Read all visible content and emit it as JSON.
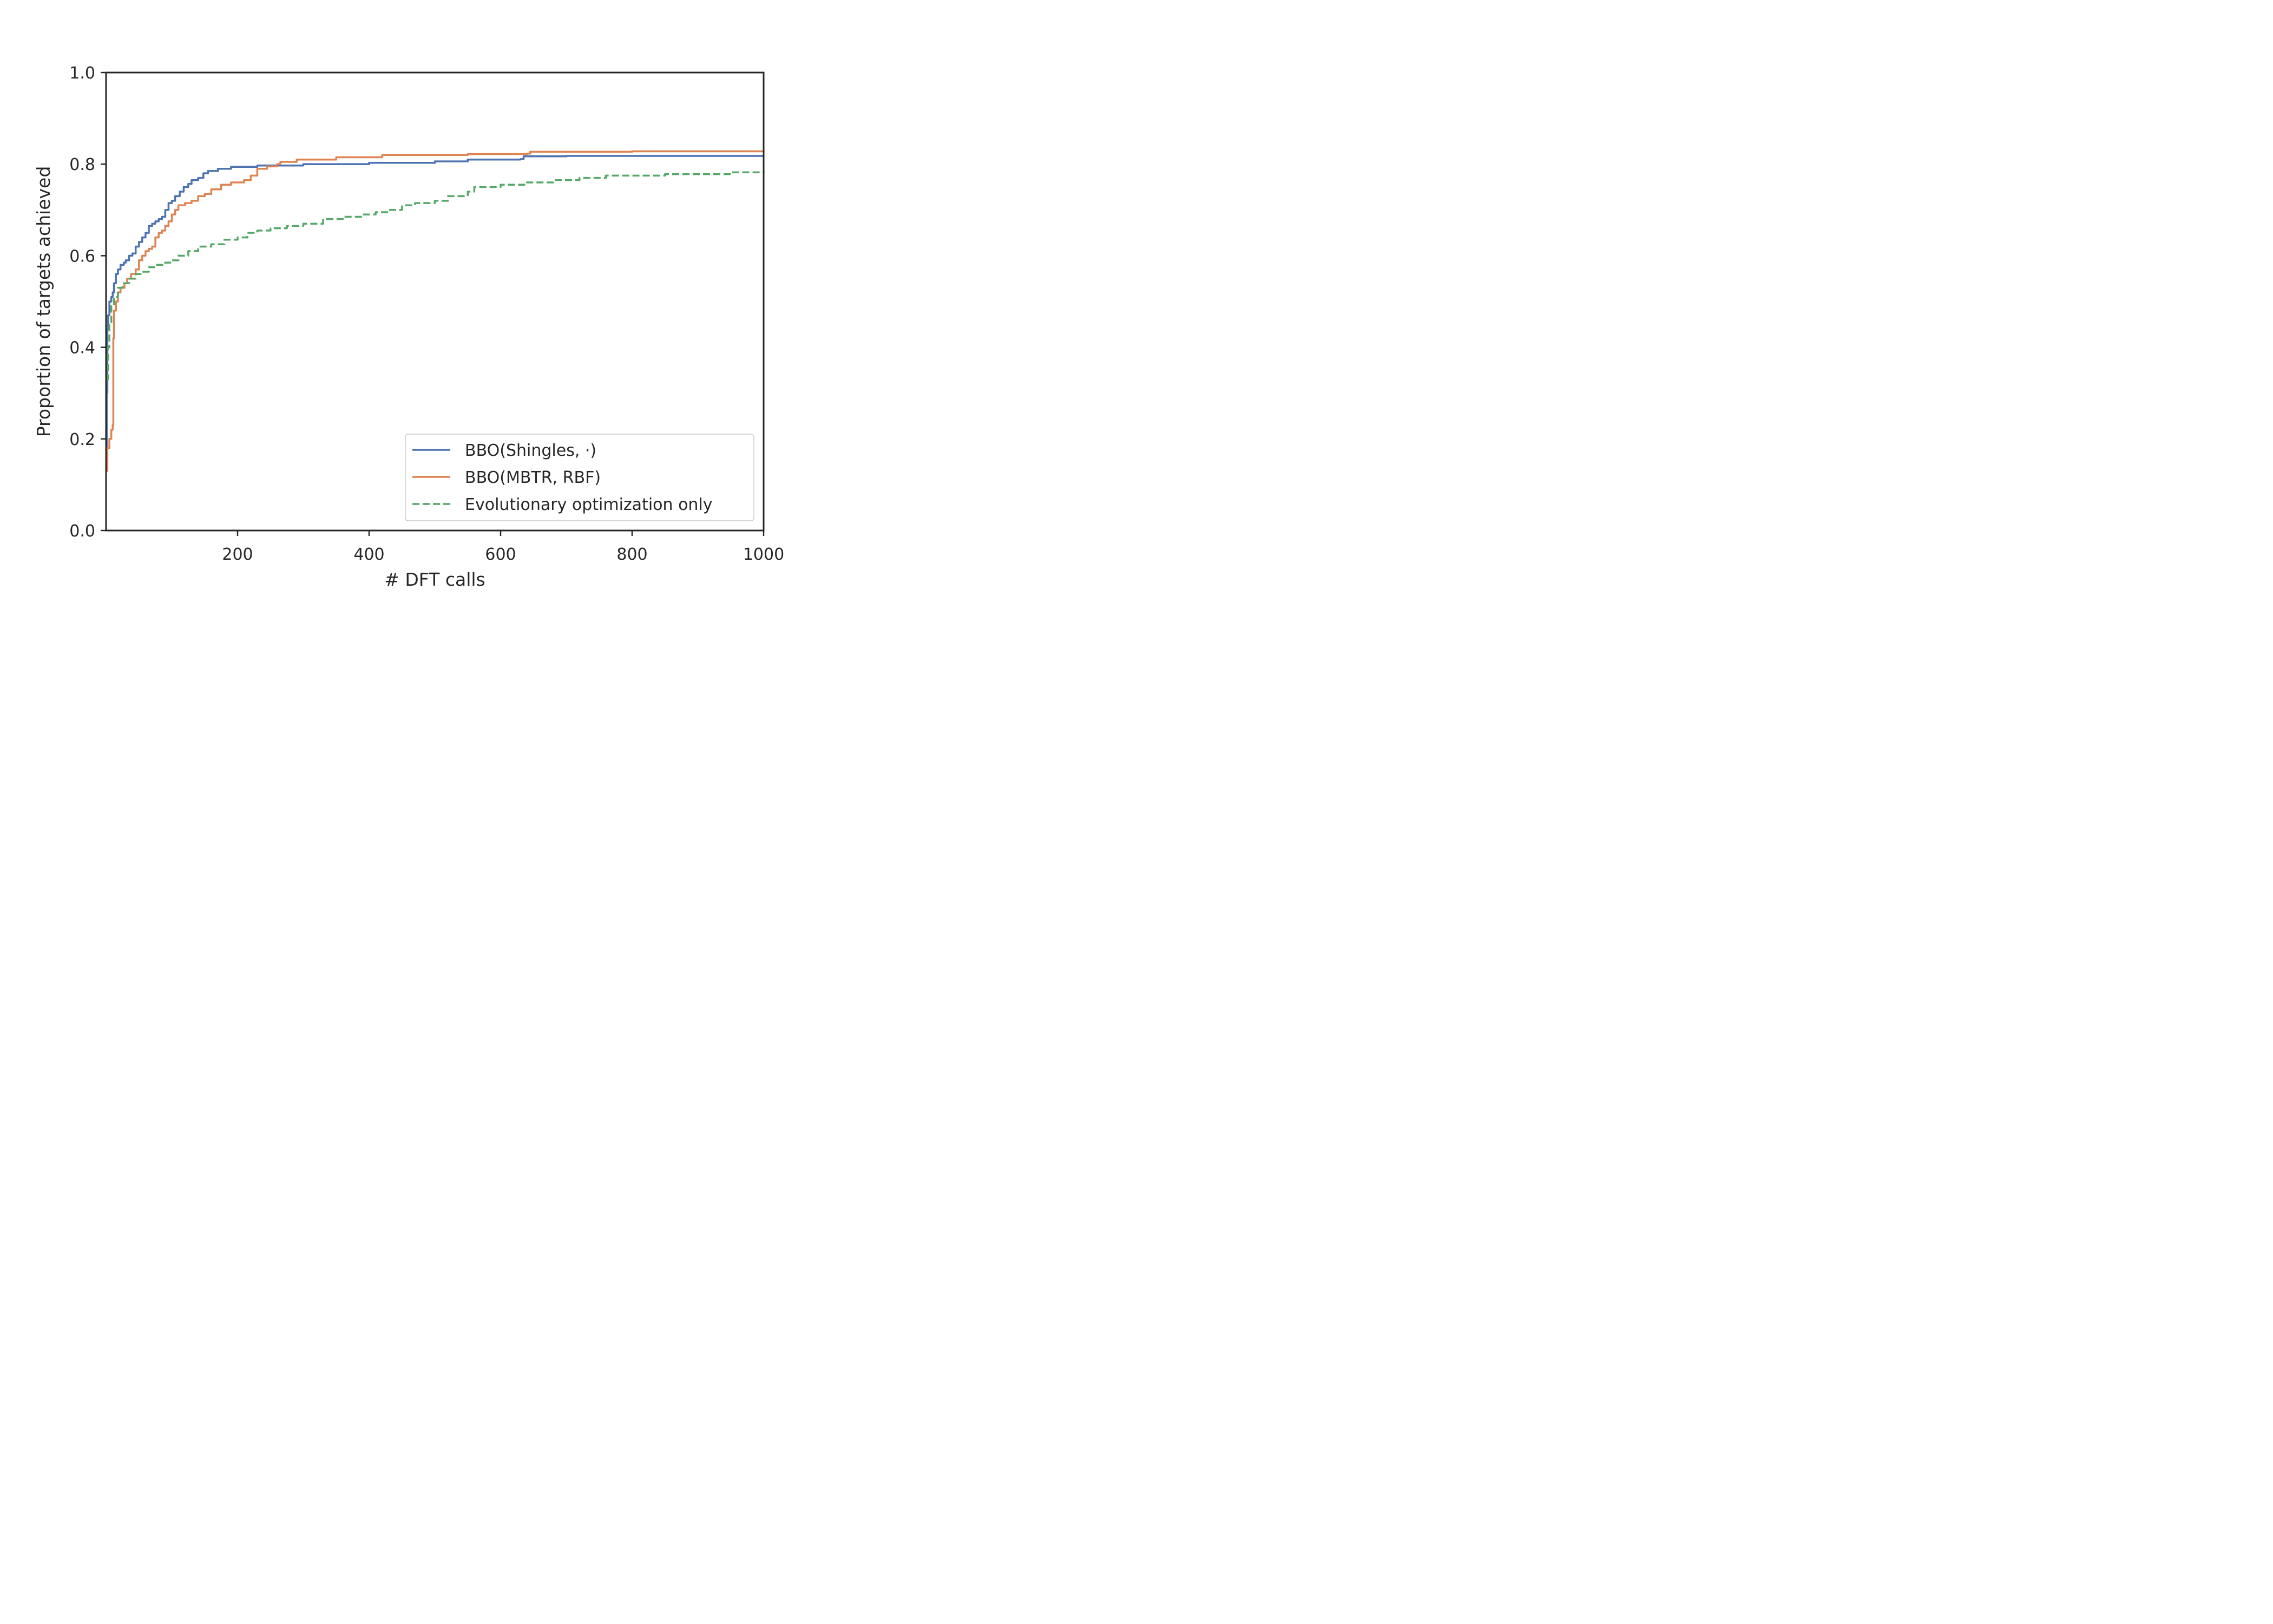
{
  "chart_data": {
    "type": "line",
    "title": "",
    "xlabel": "# DFT calls",
    "ylabel": "Proportion of targets achieved",
    "xlim": [
      0,
      1000
    ],
    "ylim": [
      0,
      1.0
    ],
    "x_ticks": [
      200,
      400,
      600,
      800,
      1000
    ],
    "x_tick_labels": [
      "200",
      "400",
      "600",
      "800",
      "1000"
    ],
    "y_ticks": [
      0,
      0.2,
      0.4,
      0.6,
      0.8,
      1.0
    ],
    "y_tick_labels": [
      "0.0",
      "0.2",
      "0.4",
      "0.6",
      "0.8",
      "1.0"
    ],
    "grid": false,
    "legend_position": "lower right",
    "series": [
      {
        "name": "BBO(Shingles, ·)",
        "color": "#4c72b0",
        "style": "solid",
        "points": [
          [
            0,
            0.14
          ],
          [
            1,
            0.3
          ],
          [
            2,
            0.44
          ],
          [
            3,
            0.47
          ],
          [
            5,
            0.5
          ],
          [
            8,
            0.51
          ],
          [
            10,
            0.52
          ],
          [
            12,
            0.54
          ],
          [
            15,
            0.56
          ],
          [
            18,
            0.57
          ],
          [
            22,
            0.58
          ],
          [
            27,
            0.585
          ],
          [
            30,
            0.59
          ],
          [
            35,
            0.6
          ],
          [
            40,
            0.605
          ],
          [
            45,
            0.62
          ],
          [
            50,
            0.63
          ],
          [
            55,
            0.64
          ],
          [
            60,
            0.65
          ],
          [
            65,
            0.665
          ],
          [
            70,
            0.67
          ],
          [
            75,
            0.675
          ],
          [
            80,
            0.68
          ],
          [
            85,
            0.685
          ],
          [
            90,
            0.7
          ],
          [
            95,
            0.715
          ],
          [
            100,
            0.72
          ],
          [
            105,
            0.73
          ],
          [
            112,
            0.74
          ],
          [
            118,
            0.75
          ],
          [
            125,
            0.757
          ],
          [
            130,
            0.765
          ],
          [
            140,
            0.77
          ],
          [
            148,
            0.78
          ],
          [
            155,
            0.785
          ],
          [
            170,
            0.79
          ],
          [
            190,
            0.794
          ],
          [
            230,
            0.797
          ],
          [
            300,
            0.8
          ],
          [
            400,
            0.803
          ],
          [
            500,
            0.806
          ],
          [
            550,
            0.81
          ],
          [
            630,
            0.811
          ],
          [
            635,
            0.817
          ],
          [
            700,
            0.818
          ],
          [
            1000,
            0.818
          ]
        ]
      },
      {
        "name": "BBO(MBTR, RBF)",
        "color": "#dd8452",
        "style": "solid",
        "points": [
          [
            0,
            0.13
          ],
          [
            2,
            0.18
          ],
          [
            5,
            0.2
          ],
          [
            8,
            0.22
          ],
          [
            10,
            0.23
          ],
          [
            11,
            0.42
          ],
          [
            12,
            0.48
          ],
          [
            15,
            0.5
          ],
          [
            18,
            0.52
          ],
          [
            22,
            0.53
          ],
          [
            28,
            0.54
          ],
          [
            32,
            0.55
          ],
          [
            38,
            0.56
          ],
          [
            45,
            0.57
          ],
          [
            50,
            0.59
          ],
          [
            55,
            0.6
          ],
          [
            60,
            0.61
          ],
          [
            65,
            0.615
          ],
          [
            70,
            0.62
          ],
          [
            75,
            0.64
          ],
          [
            80,
            0.65
          ],
          [
            85,
            0.655
          ],
          [
            90,
            0.665
          ],
          [
            95,
            0.675
          ],
          [
            100,
            0.69
          ],
          [
            105,
            0.7
          ],
          [
            110,
            0.71
          ],
          [
            120,
            0.715
          ],
          [
            130,
            0.72
          ],
          [
            140,
            0.73
          ],
          [
            150,
            0.735
          ],
          [
            160,
            0.745
          ],
          [
            175,
            0.755
          ],
          [
            190,
            0.76
          ],
          [
            210,
            0.765
          ],
          [
            220,
            0.775
          ],
          [
            230,
            0.79
          ],
          [
            245,
            0.795
          ],
          [
            260,
            0.8
          ],
          [
            265,
            0.805
          ],
          [
            290,
            0.81
          ],
          [
            350,
            0.815
          ],
          [
            420,
            0.82
          ],
          [
            550,
            0.822
          ],
          [
            640,
            0.823
          ],
          [
            645,
            0.827
          ],
          [
            800,
            0.828
          ],
          [
            1000,
            0.83
          ]
        ]
      },
      {
        "name": "Evolutionary optimization only",
        "color": "#55a868",
        "style": "dashed",
        "points": [
          [
            0,
            0.33
          ],
          [
            3,
            0.4
          ],
          [
            5,
            0.45
          ],
          [
            8,
            0.49
          ],
          [
            12,
            0.51
          ],
          [
            18,
            0.53
          ],
          [
            25,
            0.54
          ],
          [
            35,
            0.55
          ],
          [
            45,
            0.56
          ],
          [
            55,
            0.565
          ],
          [
            65,
            0.575
          ],
          [
            75,
            0.58
          ],
          [
            90,
            0.585
          ],
          [
            100,
            0.59
          ],
          [
            110,
            0.6
          ],
          [
            125,
            0.61
          ],
          [
            140,
            0.62
          ],
          [
            160,
            0.625
          ],
          [
            180,
            0.635
          ],
          [
            200,
            0.64
          ],
          [
            215,
            0.65
          ],
          [
            230,
            0.655
          ],
          [
            250,
            0.66
          ],
          [
            275,
            0.665
          ],
          [
            300,
            0.67
          ],
          [
            330,
            0.68
          ],
          [
            360,
            0.685
          ],
          [
            390,
            0.69
          ],
          [
            410,
            0.695
          ],
          [
            430,
            0.7
          ],
          [
            450,
            0.71
          ],
          [
            470,
            0.715
          ],
          [
            500,
            0.72
          ],
          [
            520,
            0.73
          ],
          [
            550,
            0.74
          ],
          [
            560,
            0.75
          ],
          [
            600,
            0.755
          ],
          [
            640,
            0.76
          ],
          [
            680,
            0.765
          ],
          [
            720,
            0.77
          ],
          [
            760,
            0.775
          ],
          [
            850,
            0.778
          ],
          [
            950,
            0.782
          ],
          [
            1000,
            0.785
          ]
        ]
      }
    ]
  }
}
